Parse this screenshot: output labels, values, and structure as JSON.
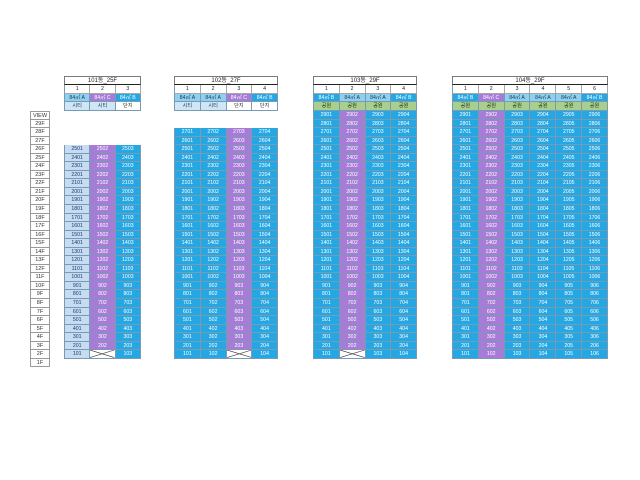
{
  "floors": [
    "VIEW",
    "29F",
    "28F",
    "27F",
    "26F",
    "25F",
    "24F",
    "23F",
    "22F",
    "21F",
    "20F",
    "19F",
    "18F",
    "17F",
    "16F",
    "15F",
    "14F",
    "13F",
    "12F",
    "11F",
    "10F",
    "9F",
    "8F",
    "7F",
    "6F",
    "5F",
    "4F",
    "3F",
    "2F",
    "1F"
  ],
  "buildings": [
    {
      "title": "101동_25F",
      "lines": [
        "1",
        "2",
        "3"
      ],
      "types": [
        {
          "label": "84㎡ A",
          "style": "a"
        },
        {
          "label": "84㎡ C",
          "style": "c"
        },
        {
          "label": "84㎡ B",
          "style": "b"
        }
      ],
      "views": [
        {
          "label": "시티",
          "style": "lb"
        },
        {
          "label": "시티",
          "style": "lb"
        },
        {
          "label": "단지",
          "style": "w"
        }
      ],
      "top_floor": 25,
      "first_floor_x": [
        2
      ],
      "colors": [
        "l",
        "p",
        "d"
      ]
    },
    {
      "title": "102동_27F",
      "lines": [
        "1",
        "2",
        "3",
        "4"
      ],
      "types": [
        {
          "label": "84㎡ A",
          "style": "a"
        },
        {
          "label": "84㎡ A",
          "style": "a"
        },
        {
          "label": "84㎡ C",
          "style": "c"
        },
        {
          "label": "84㎡ B",
          "style": "b"
        }
      ],
      "views": [
        {
          "label": "시티",
          "style": "lb"
        },
        {
          "label": "시티",
          "style": "lb"
        },
        {
          "label": "단지",
          "style": "w"
        },
        {
          "label": "단지",
          "style": "w"
        }
      ],
      "top_floor": 27,
      "first_floor_x": [
        3
      ],
      "colors": [
        "d",
        "d",
        "p",
        "d"
      ]
    },
    {
      "title": "103동_29F",
      "lines": [
        "1",
        "2",
        "3",
        "4"
      ],
      "types": [
        {
          "label": "84㎡ B",
          "style": "b"
        },
        {
          "label": "84㎡ A",
          "style": "a"
        },
        {
          "label": "84㎡ A",
          "style": "a"
        },
        {
          "label": "84㎡ B",
          "style": "b"
        }
      ],
      "views": [
        {
          "label": "공원",
          "style": "g"
        },
        {
          "label": "공원",
          "style": "g"
        },
        {
          "label": "공원",
          "style": "g"
        },
        {
          "label": "공원",
          "style": "g"
        }
      ],
      "top_floor": 29,
      "first_floor_x": [
        2
      ],
      "colors": [
        "d",
        "p",
        "d",
        "d"
      ]
    },
    {
      "title": "104동_29F",
      "lines": [
        "1",
        "2",
        "3",
        "4",
        "5",
        "6"
      ],
      "types": [
        {
          "label": "84㎡ B",
          "style": "b"
        },
        {
          "label": "84㎡ C",
          "style": "c"
        },
        {
          "label": "84㎡ A",
          "style": "a"
        },
        {
          "label": "84㎡ A",
          "style": "a"
        },
        {
          "label": "84㎡ A",
          "style": "a"
        },
        {
          "label": "84㎡ B",
          "style": "b"
        }
      ],
      "views": [
        {
          "label": "공원",
          "style": "g"
        },
        {
          "label": "공원",
          "style": "g"
        },
        {
          "label": "공원",
          "style": "g"
        },
        {
          "label": "공원",
          "style": "g"
        },
        {
          "label": "공원",
          "style": "g"
        },
        {
          "label": "공원",
          "style": "g"
        }
      ],
      "top_floor": 29,
      "first_floor_x": [],
      "colors": [
        "d",
        "p",
        "d",
        "d",
        "d",
        "d"
      ]
    }
  ]
}
